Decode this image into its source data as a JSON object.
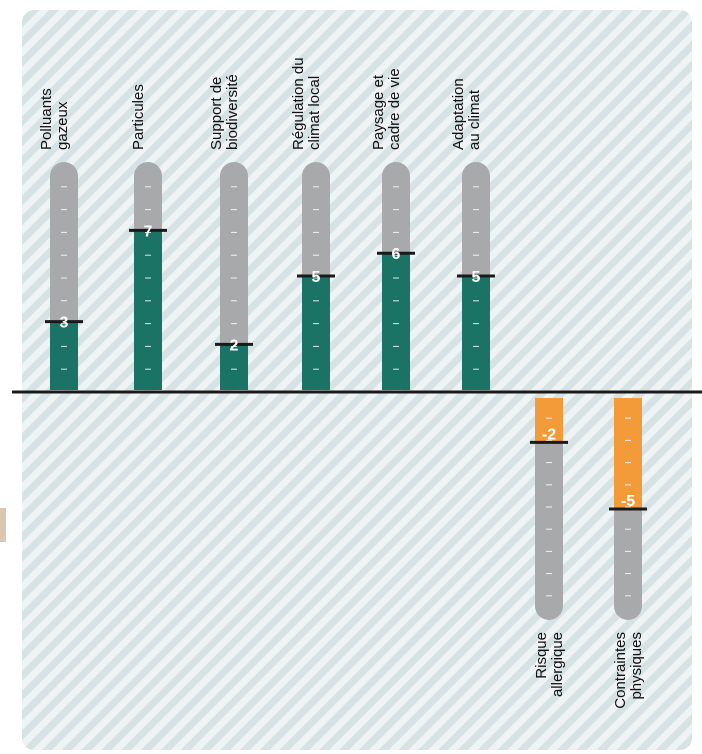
{
  "colors": {
    "positive_fill": "#1b7365",
    "negative_fill": "#f29b38",
    "track": "#a8a9ab",
    "stripe_light": "#d6e2e3",
    "stripe_bg": "#eef3f3",
    "axis": "#1a1a1a"
  },
  "chart_data": {
    "type": "bar",
    "orientation": "vertical",
    "scale": [
      -10,
      10
    ],
    "categories": [
      {
        "name": "gazeux",
        "lines": [
          "Polluants",
          "gazeux"
        ],
        "value": 3,
        "value_label": "3"
      },
      {
        "name": "particules",
        "lines": [
          "Particules"
        ],
        "value": 7,
        "value_label": "7"
      },
      {
        "name": "biodiversite",
        "lines": [
          "Support de",
          "biodiversité"
        ],
        "value": 2,
        "value_label": "2"
      },
      {
        "name": "climat-local",
        "lines": [
          "Régulation du",
          "climat local"
        ],
        "value": 5,
        "value_label": "5"
      },
      {
        "name": "paysage",
        "lines": [
          "Paysage et",
          "cadre de vie"
        ],
        "value": 6,
        "value_label": "6"
      },
      {
        "name": "adaptation",
        "lines": [
          "Adaptation",
          "au climat"
        ],
        "value": 5,
        "value_label": "5"
      },
      {
        "name": "allergique",
        "lines": [
          "Risque",
          "allergique"
        ],
        "value": -2,
        "value_label": "-2"
      },
      {
        "name": "physiques",
        "lines": [
          "Contraintes",
          "physiques"
        ],
        "value": -5,
        "value_label": "-5"
      }
    ]
  }
}
